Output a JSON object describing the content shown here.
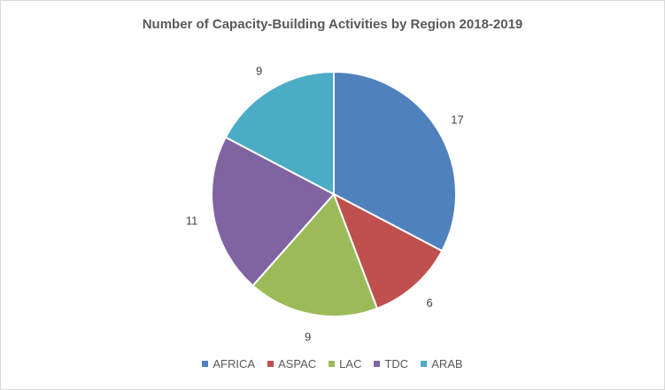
{
  "chart_data": {
    "type": "pie",
    "title": "Number of Capacity-Building Activities by Region 2018-2019",
    "categories": [
      "AFRICA",
      "ASPAC",
      "LAC",
      "TDC",
      "ARAB"
    ],
    "values": [
      17,
      6,
      9,
      11,
      9
    ],
    "colors": [
      "#4f81bd",
      "#c0504d",
      "#9bbb59",
      "#8064a2",
      "#4bacc6"
    ],
    "data_labels": [
      "17",
      "6",
      "9",
      "11",
      "9"
    ],
    "legend_position": "bottom",
    "start_angle": "top, clockwise"
  }
}
